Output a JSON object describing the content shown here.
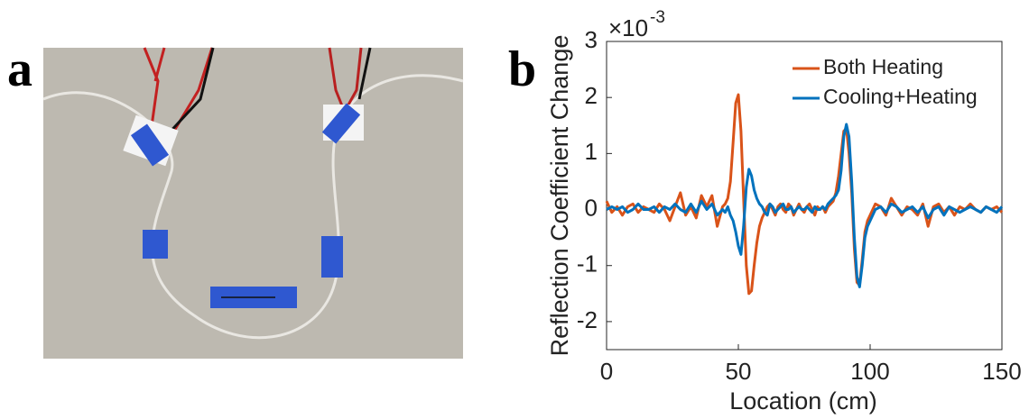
{
  "panel_a": {
    "label": "a"
  },
  "chart_data": {
    "type": "line",
    "panel_label": "b",
    "x_label": "Location (cm)",
    "y_label": "Reflection Coefficient Change",
    "y_scale_label": {
      "base": "×10",
      "exponent": "-3"
    },
    "xlim": [
      0,
      150
    ],
    "xticks": [
      0,
      50,
      100,
      150
    ],
    "ylim": [
      -2.5,
      3
    ],
    "yticks": [
      -2,
      -1,
      0,
      1,
      2,
      3
    ],
    "legend": "upper right",
    "x": [
      0,
      2,
      4,
      6,
      8,
      10,
      12,
      14,
      16,
      18,
      20,
      22,
      24,
      26,
      28,
      30,
      32,
      34,
      36,
      38,
      40,
      42,
      44,
      45,
      46,
      47,
      48,
      49,
      50,
      51,
      52,
      53,
      54,
      55,
      56,
      57,
      58,
      59,
      60,
      61,
      62,
      63,
      64,
      65,
      66,
      67,
      68,
      69,
      70,
      71,
      72,
      73,
      74,
      75,
      76,
      77,
      78,
      79,
      80,
      81,
      82,
      83,
      84,
      85,
      86,
      87,
      88,
      89,
      90,
      91,
      92,
      93,
      94,
      95,
      96,
      97,
      98,
      99,
      100,
      102,
      104,
      106,
      108,
      110,
      112,
      114,
      116,
      118,
      120,
      122,
      124,
      126,
      128,
      130,
      132,
      134,
      136,
      138,
      140,
      142,
      144,
      146,
      148,
      150
    ],
    "series": [
      {
        "name": "Both Heating",
        "color": "#d95319",
        "values": [
          0.15,
          -0.05,
          0.05,
          -0.1,
          0.05,
          0.1,
          -0.05,
          0.05,
          0,
          -0.05,
          0.1,
          0,
          -0.2,
          0.05,
          0.3,
          -0.1,
          0.05,
          -0.15,
          0.25,
          0.05,
          0.25,
          -0.3,
          0.05,
          0.1,
          0.2,
          0.5,
          1.2,
          1.9,
          2.05,
          1.4,
          0.2,
          -1,
          -1.5,
          -1.45,
          -1,
          -0.6,
          -0.3,
          -0.15,
          -0.05,
          0.05,
          0.1,
          0,
          -0.1,
          0.05,
          0.1,
          0,
          -0.05,
          0.1,
          0.05,
          -0.1,
          0,
          0.1,
          0,
          -0.05,
          0.05,
          0.1,
          0,
          -0.1,
          0.05,
          0,
          0.05,
          -0.05,
          0.05,
          0.1,
          0.15,
          0.3,
          0.6,
          1,
          1.4,
          1.45,
          1,
          0.3,
          -0.7,
          -1.3,
          -1.35,
          -0.9,
          -0.4,
          -0.2,
          -0.1,
          0.1,
          0.05,
          -0.1,
          0.2,
          0.05,
          -0.1,
          0.05,
          0,
          -0.1,
          0.1,
          -0.3,
          0.05,
          0.1,
          -0.05,
          0.05,
          -0.1,
          0.05,
          0,
          0.1,
          0,
          -0.05,
          0.05,
          0,
          0.05,
          -0.05
        ]
      },
      {
        "name": "Cooling+Heating",
        "color": "#0072bd",
        "values": [
          0,
          0.05,
          0,
          0.05,
          -0.05,
          0,
          0.1,
          0,
          0,
          0.05,
          -0.05,
          0.05,
          0,
          0.1,
          0,
          -0.05,
          0.1,
          -0.05,
          0.15,
          0,
          0.1,
          -0.1,
          0,
          -0.05,
          0.05,
          -0.1,
          -0.2,
          -0.4,
          -0.65,
          -0.8,
          -0.3,
          0.4,
          0.72,
          0.6,
          0.35,
          0.2,
          0.1,
          0.05,
          -0.05,
          -0.1,
          0.1,
          0.05,
          -0.05,
          0,
          0.05,
          0.1,
          0,
          0,
          0.05,
          -0.05,
          0,
          0.05,
          0,
          0,
          0.05,
          0,
          -0.05,
          0.05,
          0,
          0,
          0.05,
          0,
          0.1,
          0.15,
          0.2,
          0.25,
          0.35,
          0.7,
          1.3,
          1.52,
          1.3,
          0.5,
          -0.5,
          -1.2,
          -1.38,
          -1,
          -0.5,
          -0.3,
          -0.2,
          0,
          0.05,
          -0.05,
          0.1,
          0.05,
          -0.05,
          0,
          0.05,
          -0.05,
          0.05,
          -0.15,
          0,
          0.05,
          -0.1,
          0.05,
          0,
          -0.05,
          0,
          0.05,
          0,
          -0.05,
          0.05,
          0,
          -0.05,
          0.05
        ]
      }
    ]
  }
}
